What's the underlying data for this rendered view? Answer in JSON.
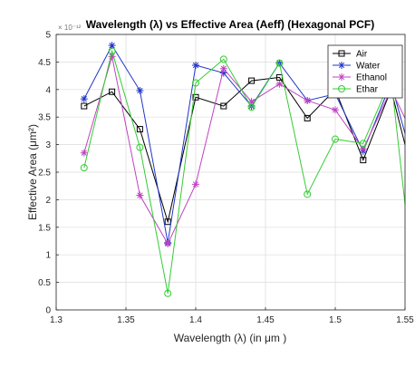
{
  "chart_data": {
    "type": "line",
    "title": "Wavelength (λ) vs Effective Area (Aeff) (Hexagonal PCF)",
    "xlabel": "Wavelength (λ) (in μm )",
    "ylabel": "Effective Area (μm²)",
    "y_exponent_label": "× 10⁻¹²",
    "xlim": [
      1.3,
      1.55
    ],
    "ylim": [
      0,
      5
    ],
    "xticks": [
      "1.3",
      "1.35",
      "1.4",
      "1.45",
      "1.5",
      "1.55"
    ],
    "yticks": [
      "0",
      "0.5",
      "1",
      "1.5",
      "2",
      "2.5",
      "3",
      "3.5",
      "4",
      "4.5",
      "5"
    ],
    "grid": true,
    "legend_position": "top-right",
    "x": [
      1.32,
      1.34,
      1.36,
      1.38,
      1.4,
      1.42,
      1.44,
      1.46,
      1.48,
      1.5,
      1.52,
      1.54,
      1.55
    ],
    "series": [
      {
        "name": "Air",
        "color": "#000000",
        "marker": "square",
        "values": [
          3.7,
          3.96,
          3.28,
          1.6,
          3.86,
          3.7,
          4.16,
          4.22,
          3.48,
          4.0,
          2.72,
          4.0,
          3.0
        ]
      },
      {
        "name": "Water",
        "color": "#1f35c9",
        "marker": "star",
        "values": [
          3.83,
          4.8,
          3.98,
          1.22,
          4.44,
          4.3,
          3.7,
          4.48,
          3.8,
          3.92,
          2.88,
          4.12,
          3.2
        ]
      },
      {
        "name": "Ethanol",
        "color": "#c042c0",
        "marker": "star",
        "values": [
          2.85,
          4.6,
          2.08,
          1.2,
          2.28,
          4.38,
          3.78,
          4.1,
          3.8,
          3.63,
          2.92,
          4.0,
          3.48
        ]
      },
      {
        "name": "Ethar",
        "color": "#33cc33",
        "marker": "circle",
        "values": [
          2.58,
          4.7,
          2.95,
          0.3,
          4.12,
          4.55,
          3.68,
          4.48,
          2.1,
          3.1,
          3.02,
          4.2,
          1.92
        ]
      }
    ]
  }
}
